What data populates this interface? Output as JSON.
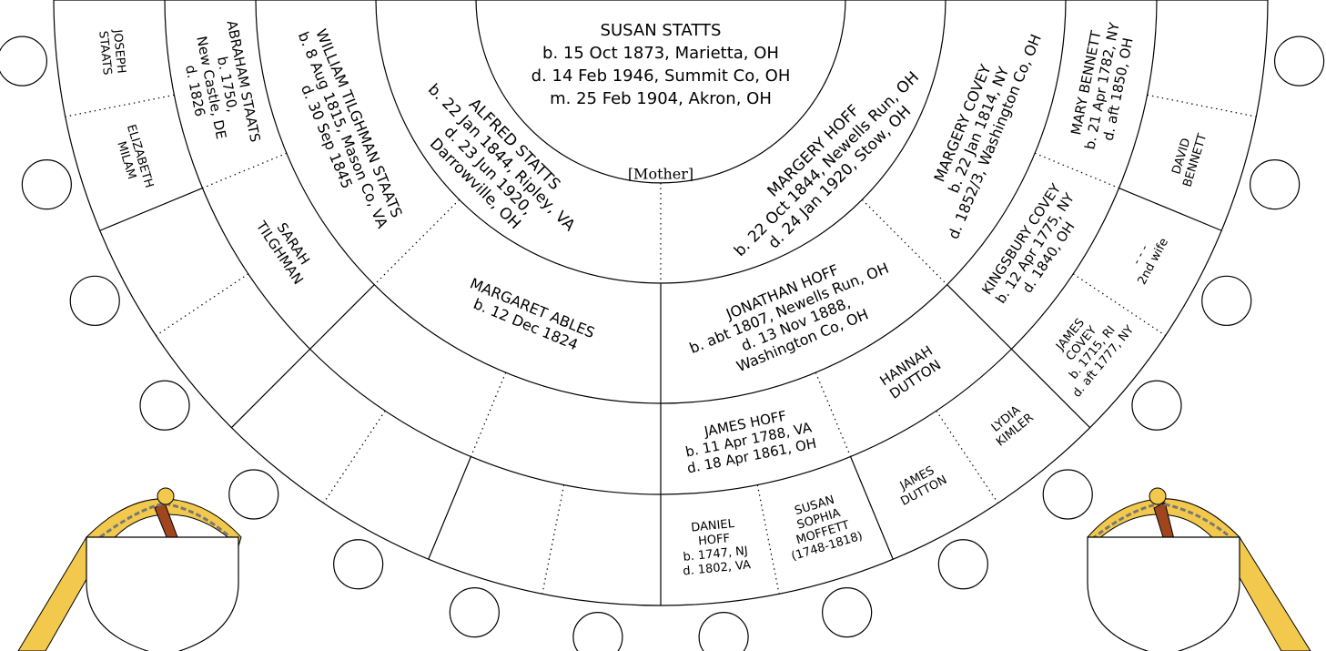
{
  "center": {
    "lines": [
      "SUSAN STATTS",
      "b. 15 Oct 1873, Marietta, OH",
      "d. 14 Feb 1946, Summit Co, OH",
      "m. 25 Feb 1904, Akron, OH"
    ],
    "role": "[Mother]"
  },
  "nodes": [
    {
      "lines": [
        "MARGERY HOFF",
        "b. 22 Oct 1844, Newells Run, OH",
        "d. 24 Jan 1920, Stow, OH"
      ]
    },
    {
      "lines": [
        "ALFRED STATTS",
        "b. 22 Jan 1844, Ripley, VA",
        "d. 23 Jun 1920,",
        "Darrowville, OH"
      ]
    },
    {
      "lines": [
        "MARGERY COVEY",
        "b. 22 Jan 1814, NY",
        "d. 1852/3, Washington Co, OH"
      ]
    },
    {
      "lines": [
        "JONATHAN HOFF",
        "b. abt 1807, Newells Run, OH",
        "d. 13 Nov 1888,",
        "Washington Co, OH"
      ]
    },
    {
      "lines": [
        "MARGARET ABLES",
        "b. 12 Dec 1824"
      ]
    },
    {
      "lines": [
        "WILLIAM TILGHMAN STAATS",
        "b. 8 Aug 1815, Mason Co, VA",
        "d. 30 Sep 1845"
      ]
    },
    {
      "lines": [
        "MARY BENNETT",
        "b. 21 Apr 1782, NY",
        "d. aft 1850, OH"
      ]
    },
    {
      "lines": [
        "KINGSBURY COVEY",
        "b. 12 Apr 1775, NY",
        "d. 1840, OH"
      ]
    },
    {
      "lines": [
        "HANNAH",
        "DUTTON"
      ]
    },
    {
      "lines": [
        "JAMES HOFF",
        "b. 11 Apr 1788, VA",
        "d. 18 Apr 1861, OH"
      ]
    },
    {
      "lines": [
        "SARAH",
        "TILGHMAN"
      ]
    },
    {
      "lines": [
        "ABRAHAM STAATS",
        "b. 1750,",
        "New Castle, DE",
        "d. 1826"
      ]
    },
    {
      "lines": [
        "DAVID",
        "BENNETT"
      ]
    },
    {
      "lines": [
        "- - -",
        "2nd wife"
      ]
    },
    {
      "lines": [
        "JAMES",
        "COVEY",
        "b. 1715, RI",
        "d. aft 1777, NY"
      ]
    },
    {
      "lines": [
        "LYDIA",
        "KIMLER"
      ]
    },
    {
      "lines": [
        "JAMES",
        "DUTTON"
      ]
    },
    {
      "lines": [
        "SUSAN",
        "SOPHIA",
        "MOFFETT",
        "(1748-1818)"
      ]
    },
    {
      "lines": [
        "DANIEL",
        "HOFF",
        "b. 1747, NJ",
        "d. 1802, VA"
      ]
    },
    {
      "lines": [
        "ELIZABETH",
        "MILAM"
      ]
    },
    {
      "lines": [
        "JOSEPH",
        "STAATS"
      ]
    }
  ]
}
